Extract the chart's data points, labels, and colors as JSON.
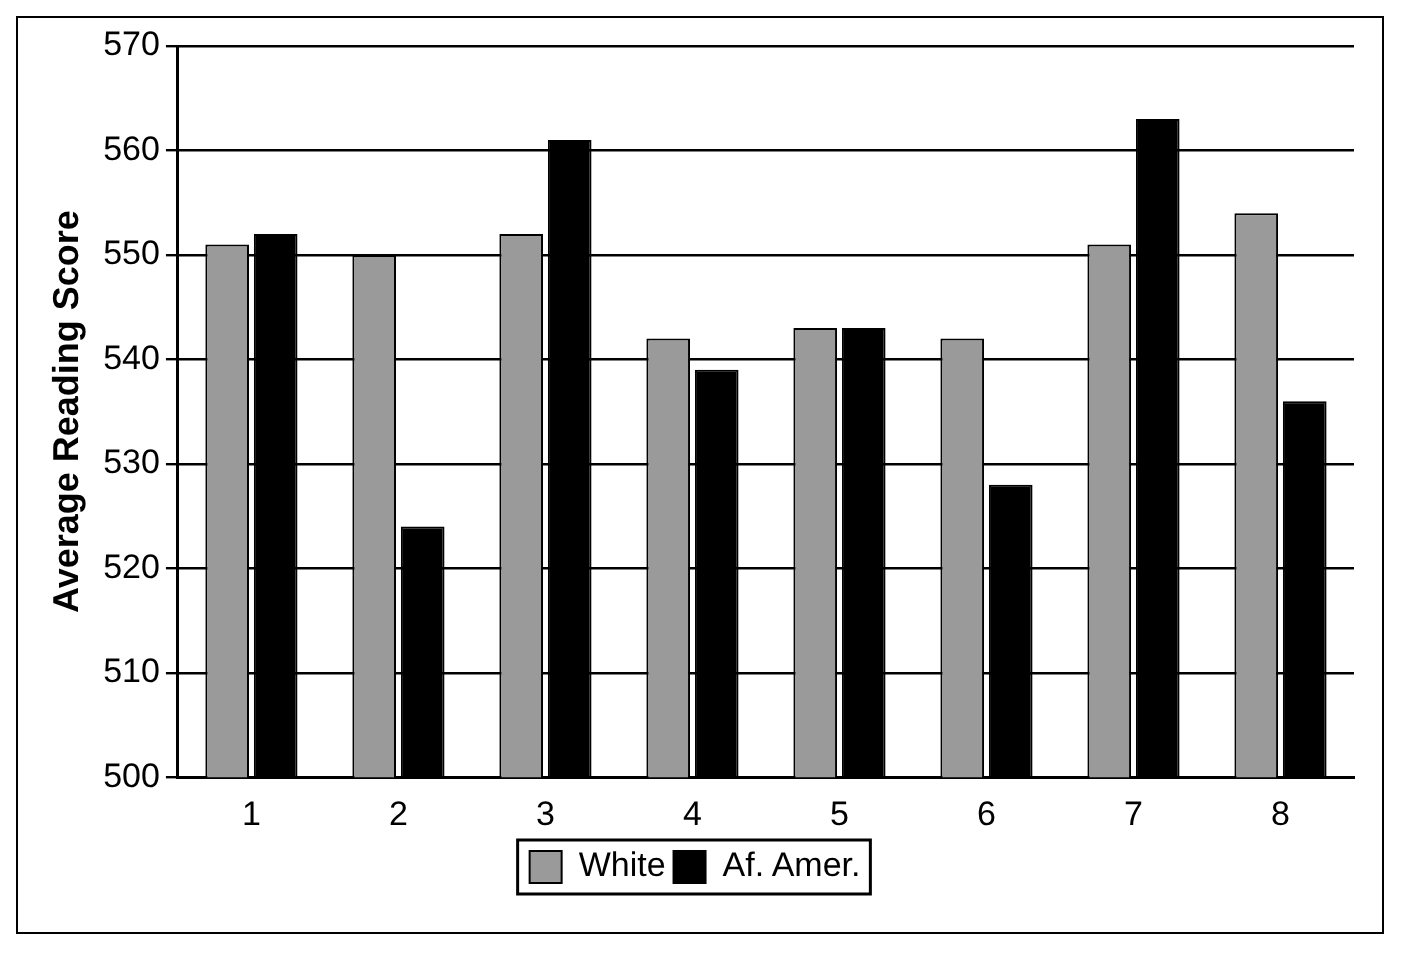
{
  "chart_data": {
    "type": "bar",
    "ylabel": "Average Reading Score",
    "categories": [
      "1",
      "2",
      "3",
      "4",
      "5",
      "6",
      "7",
      "8"
    ],
    "series": [
      {
        "name": "White",
        "color": "#9a9a9a",
        "values": [
          551,
          550,
          552,
          542,
          543,
          542,
          551,
          554
        ]
      },
      {
        "name": "Af. Amer.",
        "color": "#000000",
        "values": [
          552,
          524,
          561,
          539,
          543,
          528,
          563,
          536
        ]
      }
    ],
    "ylim": [
      500,
      570
    ],
    "yticks": [
      500,
      510,
      520,
      530,
      540,
      550,
      560,
      570
    ],
    "grid": "y",
    "legend": "bottom"
  }
}
